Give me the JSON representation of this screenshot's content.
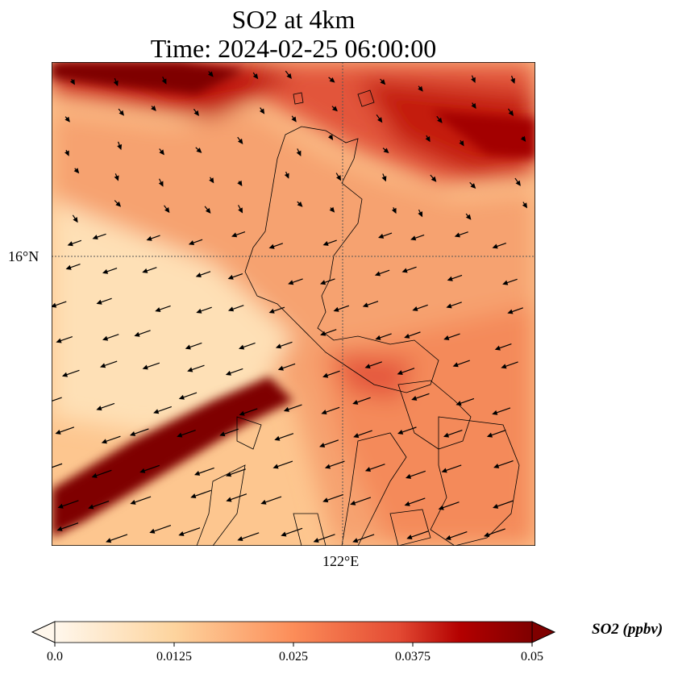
{
  "title": {
    "line1": "SO2 at 4km",
    "line2": "Time: 2024-02-25 06:00:00"
  },
  "axes": {
    "lat_label": "16°N",
    "lon_label": "122°E"
  },
  "colorbar": {
    "label": "SO2 (ppbv)",
    "ticks": [
      "0.0",
      "0.0125",
      "0.025",
      "0.0375",
      "0.05"
    ],
    "range": [
      0.0,
      0.05
    ],
    "extend": "both",
    "colormap": [
      "#fff7ec",
      "#fdd49e",
      "#fc8d59",
      "#d7301f",
      "#b30000",
      "#7f0000"
    ]
  }
}
